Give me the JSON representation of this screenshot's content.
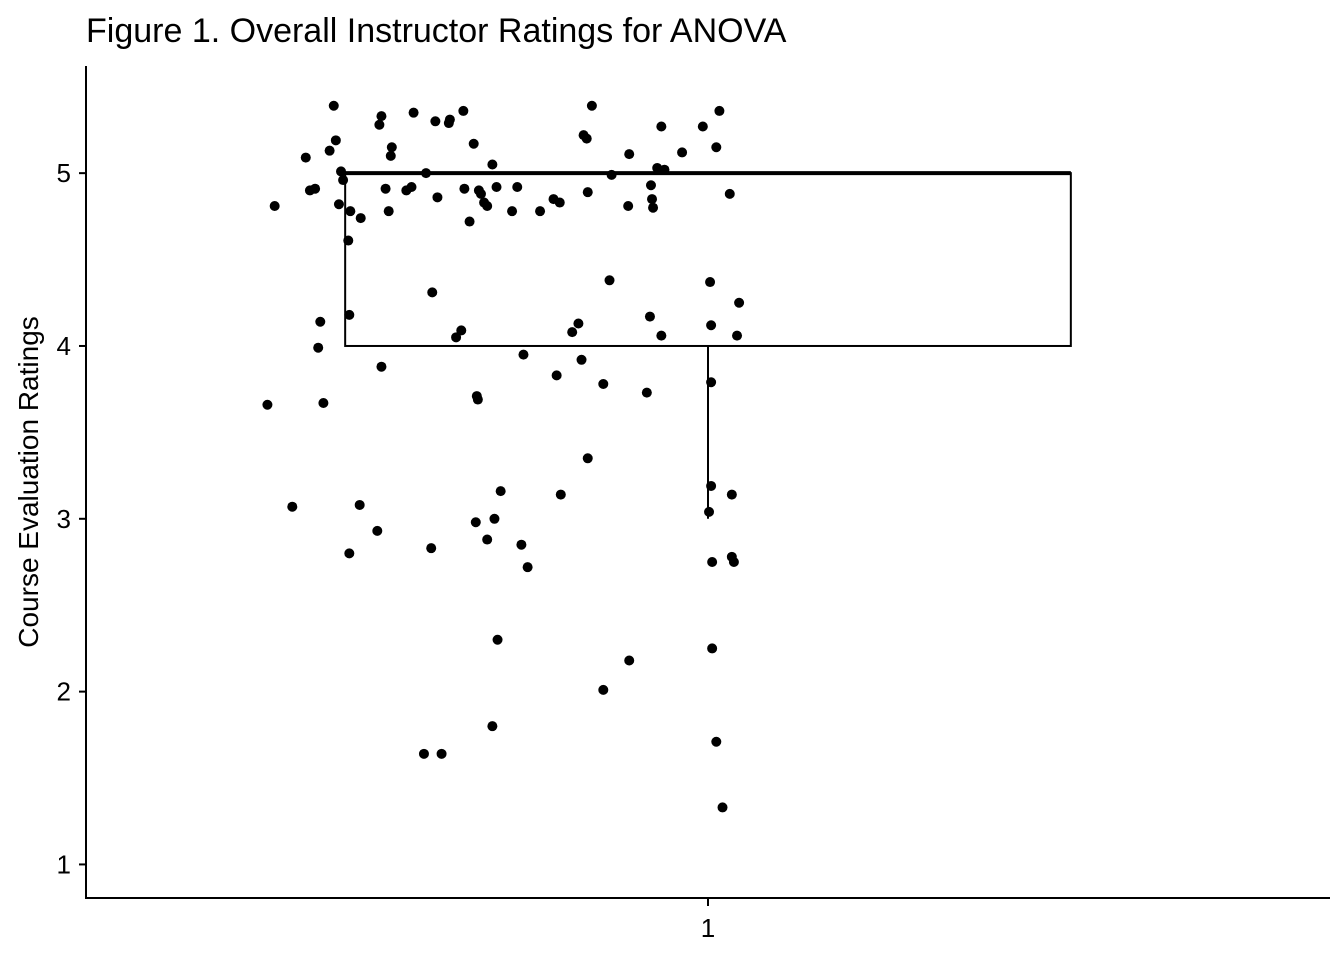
{
  "chart_data": {
    "type": "box",
    "title": "Figure 1. Overall Instructor Ratings for ANOVA",
    "xlabel": "",
    "ylabel": "Course Evaluation Ratings",
    "categories": [
      "1"
    ],
    "y_ticks": [
      1,
      2,
      3,
      4,
      5
    ],
    "ylim": [
      0.8,
      5.62
    ],
    "grid": false,
    "box": {
      "category": "1",
      "lower_whisker": 3.0,
      "q1": 4.0,
      "median": 5.0,
      "q3": 5.0,
      "upper_whisker": 5.0
    },
    "jitter_points": [
      {
        "x": 0.582,
        "y": 4.81
      },
      {
        "x": 0.612,
        "y": 5.09
      },
      {
        "x": 0.616,
        "y": 4.9
      },
      {
        "x": 0.621,
        "y": 4.91
      },
      {
        "x": 0.639,
        "y": 5.39
      },
      {
        "x": 0.641,
        "y": 5.19
      },
      {
        "x": 0.644,
        "y": 4.82
      },
      {
        "x": 0.646,
        "y": 5.01
      },
      {
        "x": 0.648,
        "y": 4.96
      },
      {
        "x": 0.635,
        "y": 5.13
      },
      {
        "x": 0.655,
        "y": 4.78
      },
      {
        "x": 0.653,
        "y": 4.61
      },
      {
        "x": 0.665,
        "y": 4.74
      },
      {
        "x": 0.683,
        "y": 5.28
      },
      {
        "x": 0.685,
        "y": 5.33
      },
      {
        "x": 0.689,
        "y": 4.91
      },
      {
        "x": 0.692,
        "y": 4.78
      },
      {
        "x": 0.694,
        "y": 5.1
      },
      {
        "x": 0.695,
        "y": 5.15
      },
      {
        "x": 0.709,
        "y": 4.9
      },
      {
        "x": 0.714,
        "y": 4.92
      },
      {
        "x": 0.716,
        "y": 5.35
      },
      {
        "x": 0.728,
        "y": 5.0
      },
      {
        "x": 0.737,
        "y": 5.3
      },
      {
        "x": 0.739,
        "y": 4.86
      },
      {
        "x": 0.75,
        "y": 5.29
      },
      {
        "x": 0.751,
        "y": 5.31
      },
      {
        "x": 0.764,
        "y": 5.36
      },
      {
        "x": 0.765,
        "y": 4.91
      },
      {
        "x": 0.77,
        "y": 4.72
      },
      {
        "x": 0.774,
        "y": 5.17
      },
      {
        "x": 0.779,
        "y": 4.9
      },
      {
        "x": 0.781,
        "y": 4.88
      },
      {
        "x": 0.784,
        "y": 4.83
      },
      {
        "x": 0.787,
        "y": 4.81
      },
      {
        "x": 0.792,
        "y": 5.05
      },
      {
        "x": 0.796,
        "y": 4.92
      },
      {
        "x": 0.811,
        "y": 4.78
      },
      {
        "x": 0.816,
        "y": 4.92
      },
      {
        "x": 0.838,
        "y": 4.78
      },
      {
        "x": 0.851,
        "y": 4.85
      },
      {
        "x": 0.857,
        "y": 4.83
      },
      {
        "x": 0.884,
        "y": 4.89
      },
      {
        "x": 0.88,
        "y": 5.22
      },
      {
        "x": 0.883,
        "y": 5.2
      },
      {
        "x": 0.888,
        "y": 5.39
      },
      {
        "x": 0.907,
        "y": 4.99
      },
      {
        "x": 0.924,
        "y": 5.11
      },
      {
        "x": 0.923,
        "y": 4.81
      },
      {
        "x": 0.945,
        "y": 4.93
      },
      {
        "x": 0.946,
        "y": 4.85
      },
      {
        "x": 0.947,
        "y": 4.8
      },
      {
        "x": 0.951,
        "y": 5.03
      },
      {
        "x": 0.955,
        "y": 5.27
      },
      {
        "x": 0.958,
        "y": 5.02
      },
      {
        "x": 0.975,
        "y": 5.12
      },
      {
        "x": 0.995,
        "y": 5.27
      },
      {
        "x": 1.011,
        "y": 5.36
      },
      {
        "x": 1.008,
        "y": 5.15
      },
      {
        "x": 1.021,
        "y": 4.88
      },
      {
        "x": 0.575,
        "y": 3.66
      },
      {
        "x": 0.626,
        "y": 4.14
      },
      {
        "x": 0.624,
        "y": 3.99
      },
      {
        "x": 0.629,
        "y": 3.67
      },
      {
        "x": 0.654,
        "y": 4.18
      },
      {
        "x": 0.685,
        "y": 3.88
      },
      {
        "x": 0.734,
        "y": 4.31
      },
      {
        "x": 0.757,
        "y": 4.05
      },
      {
        "x": 0.762,
        "y": 4.09
      },
      {
        "x": 0.777,
        "y": 3.71
      },
      {
        "x": 0.778,
        "y": 3.69
      },
      {
        "x": 0.822,
        "y": 3.95
      },
      {
        "x": 0.854,
        "y": 3.83
      },
      {
        "x": 0.869,
        "y": 4.08
      },
      {
        "x": 0.875,
        "y": 4.13
      },
      {
        "x": 0.878,
        "y": 3.92
      },
      {
        "x": 0.899,
        "y": 3.78
      },
      {
        "x": 0.905,
        "y": 4.38
      },
      {
        "x": 0.944,
        "y": 4.17
      },
      {
        "x": 0.955,
        "y": 4.06
      },
      {
        "x": 1.002,
        "y": 4.37
      },
      {
        "x": 1.003,
        "y": 4.12
      },
      {
        "x": 1.003,
        "y": 3.79
      },
      {
        "x": 1.03,
        "y": 4.25
      },
      {
        "x": 1.028,
        "y": 4.06
      },
      {
        "x": 0.941,
        "y": 3.73
      },
      {
        "x": 0.599,
        "y": 3.07
      },
      {
        "x": 0.664,
        "y": 3.08
      },
      {
        "x": 0.681,
        "y": 2.93
      },
      {
        "x": 0.654,
        "y": 2.8
      },
      {
        "x": 0.733,
        "y": 2.83
      },
      {
        "x": 0.776,
        "y": 2.98
      },
      {
        "x": 0.794,
        "y": 3.0
      },
      {
        "x": 0.8,
        "y": 3.16
      },
      {
        "x": 0.787,
        "y": 2.88
      },
      {
        "x": 0.82,
        "y": 2.85
      },
      {
        "x": 0.826,
        "y": 2.72
      },
      {
        "x": 0.858,
        "y": 3.14
      },
      {
        "x": 0.884,
        "y": 3.35
      },
      {
        "x": 1.001,
        "y": 3.04
      },
      {
        "x": 1.003,
        "y": 3.19
      },
      {
        "x": 1.004,
        "y": 2.75
      },
      {
        "x": 1.023,
        "y": 2.78
      },
      {
        "x": 1.025,
        "y": 2.75
      },
      {
        "x": 1.023,
        "y": 3.14
      },
      {
        "x": 0.797,
        "y": 2.3
      },
      {
        "x": 0.792,
        "y": 1.8
      },
      {
        "x": 0.726,
        "y": 1.64
      },
      {
        "x": 0.743,
        "y": 1.64
      },
      {
        "x": 0.899,
        "y": 2.01
      },
      {
        "x": 0.924,
        "y": 2.18
      },
      {
        "x": 1.004,
        "y": 2.25
      },
      {
        "x": 1.008,
        "y": 1.71
      },
      {
        "x": 1.014,
        "y": 1.33
      }
    ]
  }
}
